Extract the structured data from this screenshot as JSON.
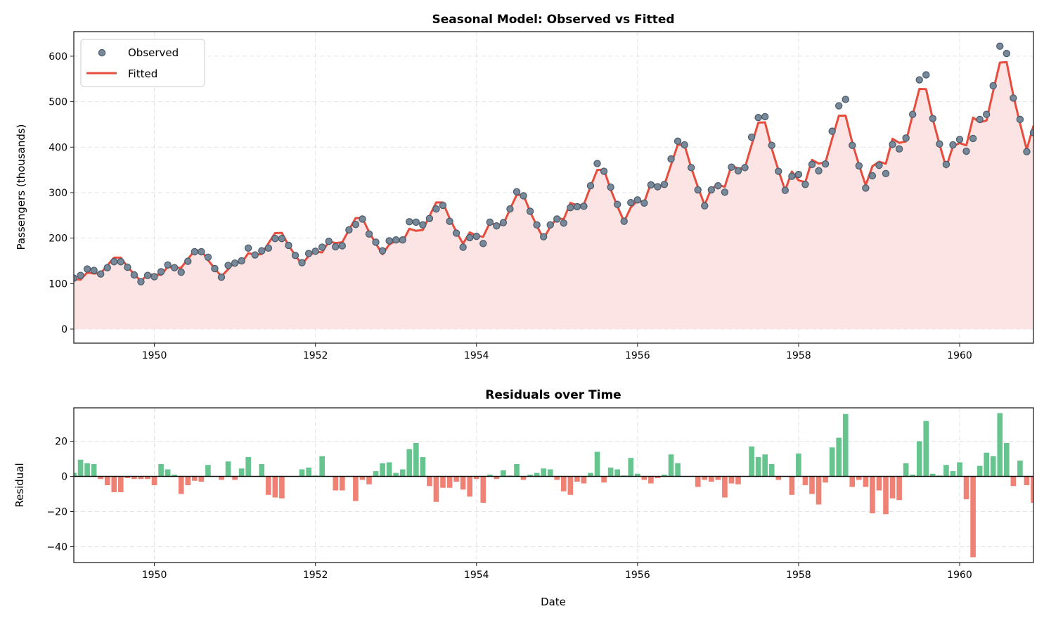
{
  "chart_data": [
    {
      "type": "line",
      "title": "Seasonal Model: Observed vs Fitted",
      "xlabel": "",
      "ylabel": "Passengers (thousands)",
      "xlim": [
        "1949-01",
        "1960-12"
      ],
      "ylim": [
        -31,
        654
      ],
      "xticks": [
        "1950",
        "1952",
        "1954",
        "1956",
        "1958",
        "1960"
      ],
      "yticks": [
        0,
        100,
        200,
        300,
        400,
        500,
        600
      ],
      "grid": true,
      "legend": "top-left",
      "start": "1949-01",
      "frequency": "monthly",
      "series": [
        {
          "name": "Observed",
          "style": "scatter",
          "color": "#778899",
          "edge_color": "#4a5a6a",
          "values": [
            112,
            118,
            132,
            129,
            121,
            135,
            148,
            148,
            136,
            119,
            104,
            118,
            115,
            126,
            141,
            135,
            125,
            149,
            170,
            170,
            158,
            133,
            114,
            140,
            145,
            150,
            178,
            163,
            172,
            178,
            199,
            199,
            184,
            162,
            146,
            166,
            171,
            180,
            193,
            181,
            183,
            218,
            230,
            242,
            209,
            191,
            172,
            194,
            196,
            196,
            236,
            235,
            229,
            243,
            264,
            272,
            237,
            211,
            180,
            201,
            204,
            188,
            235,
            227,
            234,
            264,
            302,
            293,
            259,
            229,
            203,
            229,
            242,
            233,
            267,
            269,
            270,
            315,
            364,
            347,
            312,
            274,
            237,
            278,
            284,
            277,
            317,
            313,
            318,
            374,
            413,
            405,
            355,
            306,
            271,
            306,
            315,
            301,
            356,
            348,
            355,
            422,
            465,
            467,
            404,
            347,
            305,
            336,
            340,
            318,
            362,
            348,
            363,
            435,
            491,
            505,
            404,
            359,
            310,
            337,
            360,
            342,
            406,
            396,
            420,
            472,
            548,
            559,
            463,
            407,
            362,
            405,
            417,
            391,
            419,
            461,
            472,
            535,
            622,
            606,
            508,
            461,
            390,
            432
          ]
        },
        {
          "name": "Fitted",
          "style": "line",
          "color": "#e74c3c",
          "fill_color": "#fbe4e3",
          "values": [
            110,
            108.5,
            124.5,
            122,
            122.5,
            140,
            157,
            157,
            137,
            120.5,
            105.5,
            119.5,
            120,
            119,
            137,
            134,
            135,
            154,
            172.5,
            173,
            151.5,
            133,
            116,
            131.5,
            147,
            145.5,
            167,
            163,
            165,
            188.5,
            211,
            211.5,
            184,
            162,
            142,
            161,
            170.5,
            168.5,
            193,
            189,
            191,
            218,
            244,
            244,
            213.5,
            188,
            164.5,
            186,
            194,
            192,
            220.5,
            216,
            218,
            248.5,
            278.5,
            278.5,
            243.5,
            214,
            187.5,
            212.5,
            205.5,
            203,
            234,
            228.5,
            230.5,
            263.5,
            295,
            295,
            258,
            227,
            198.5,
            225,
            244,
            241.5,
            277.5,
            272,
            274,
            313,
            350,
            350.5,
            307,
            270,
            236.5,
            267.5,
            282.5,
            279,
            321,
            314,
            317,
            361.5,
            405.5,
            405,
            355,
            312,
            273,
            309,
            317,
            313,
            360,
            352.5,
            355,
            405,
            454,
            454.5,
            397,
            349,
            305,
            346.5,
            327,
            323,
            372,
            364,
            366.5,
            418.5,
            469,
            469.5,
            410,
            361,
            316,
            358,
            368,
            363.5,
            418.5,
            409.5,
            412.5,
            471,
            528,
            527.5,
            461.5,
            406.5,
            355.5,
            402,
            409,
            404,
            465,
            455,
            458.5,
            523.5,
            586,
            587,
            513.5,
            452,
            395,
            447
          ]
        }
      ]
    },
    {
      "type": "bar",
      "title": "Residuals over Time",
      "xlabel": "Date",
      "ylabel": "Residual",
      "xlim": [
        "1949-01",
        "1960-12"
      ],
      "ylim": [
        -49,
        39
      ],
      "xticks": [
        "1950",
        "1952",
        "1954",
        "1956",
        "1958",
        "1960"
      ],
      "yticks": [
        -40,
        -20,
        0,
        20
      ],
      "grid": true,
      "start": "1949-01",
      "frequency": "monthly",
      "positive_color": "#66c48f",
      "negative_color": "#ef8275",
      "values": [
        2,
        9.5,
        7.5,
        7,
        -1.5,
        -5,
        -9,
        -9,
        -1,
        -1.5,
        -1.5,
        -1.5,
        -5,
        7,
        4,
        1,
        -10,
        -5,
        -2.5,
        -3,
        6.5,
        0,
        -2,
        8.5,
        -2,
        4.5,
        11,
        0,
        7,
        -10.5,
        -12,
        -12.5,
        0,
        0,
        4,
        5,
        0.5,
        11.5,
        0,
        -8,
        -8,
        0,
        -14,
        -2,
        -4.5,
        3,
        7.5,
        8,
        2,
        4,
        15.5,
        19,
        11,
        -5.5,
        -14.5,
        -6.5,
        -6.5,
        -3,
        -7.5,
        -11.5,
        -1.5,
        -15,
        1,
        -1.5,
        3.5,
        0.5,
        7,
        -2,
        1,
        2,
        4.5,
        4,
        -2,
        -8.5,
        -10.5,
        -3,
        -4,
        2,
        14,
        -3.5,
        5,
        4,
        0.5,
        10.5,
        1.5,
        -2,
        -4,
        -1,
        1,
        12.5,
        7.5,
        0,
        0,
        -6,
        -2,
        -3,
        -2,
        -12,
        -4,
        -4.5,
        0,
        17,
        11,
        12.5,
        7,
        -2,
        0,
        -10.5,
        13,
        -5,
        -10,
        -16,
        -3.5,
        16.5,
        22,
        35.5,
        -6,
        -2,
        -6,
        -21,
        -8,
        -21.5,
        -12.5,
        -13.5,
        7.5,
        1,
        20,
        31.5,
        1.5,
        0.5,
        6.5,
        3,
        8,
        -13,
        -46,
        6,
        13.5,
        11.5,
        36,
        19,
        -5.5,
        9,
        -5,
        -15
      ]
    }
  ]
}
